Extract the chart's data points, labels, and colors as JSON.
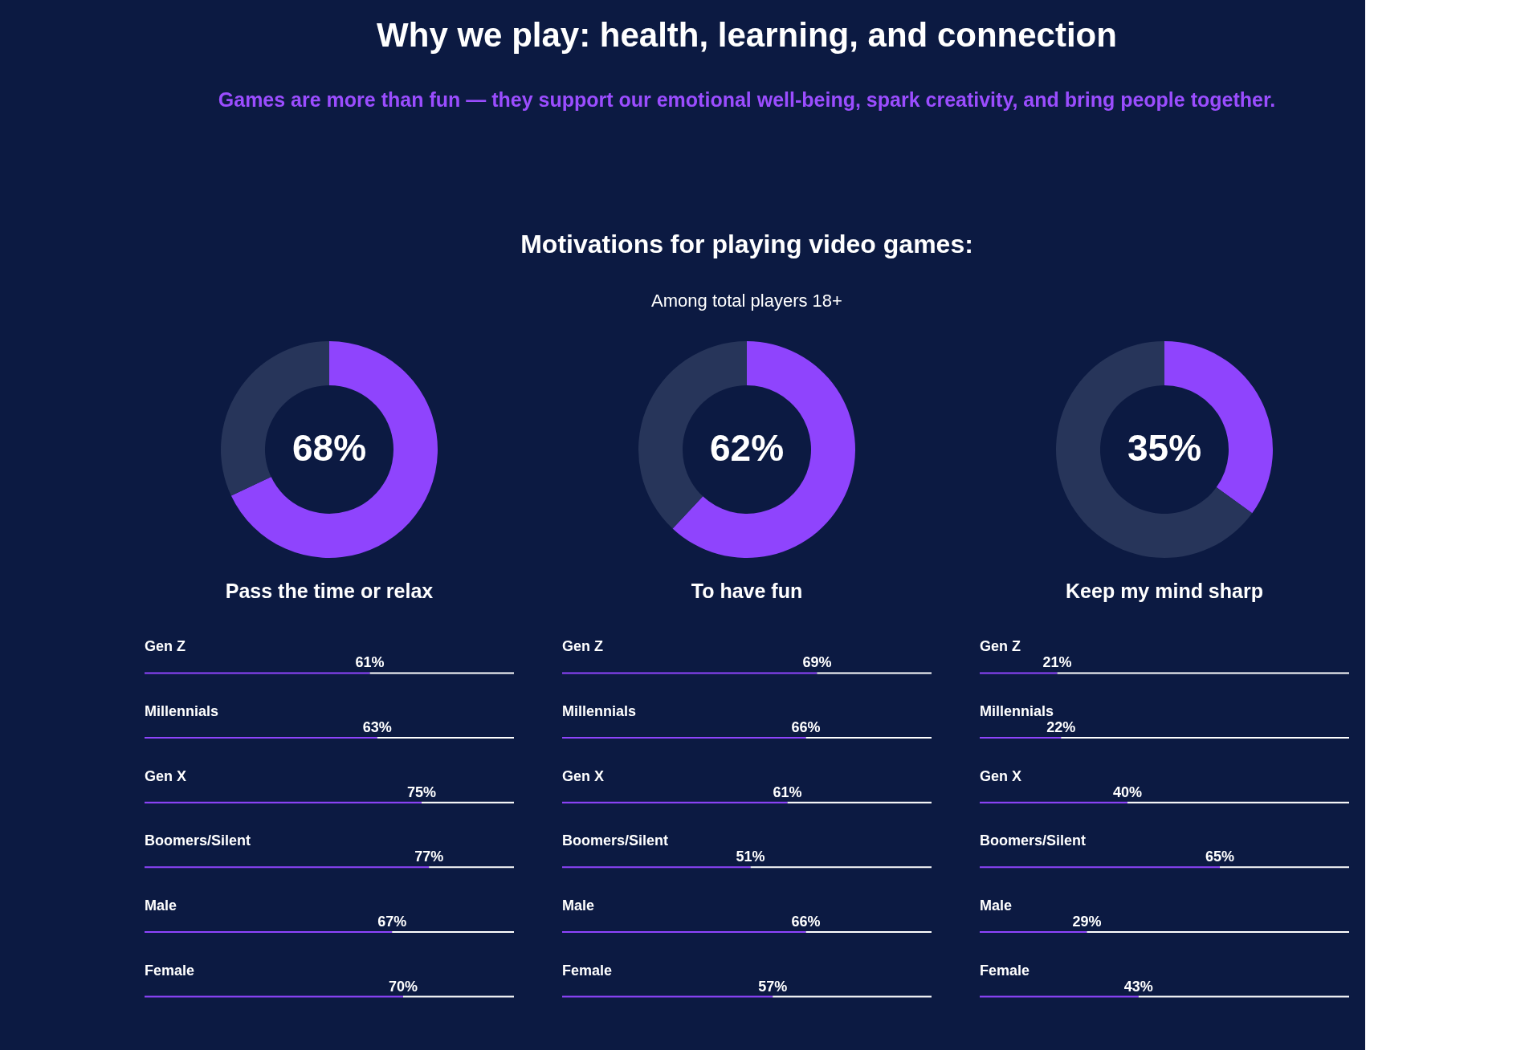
{
  "chart_data": [
    {
      "type": "other",
      "title": "Why we play: health, learning, and connection",
      "subtitle": "Games are more than fun — they support our emotional well-being, spark creativity, and bring people together.",
      "annotations": [
        "Motivations for playing video games:",
        "Among total players 18+"
      ]
    },
    {
      "type": "donut",
      "title": "Pass the time or relax",
      "categories": [
        null,
        null
      ],
      "values": [
        68,
        32
      ],
      "colors": [
        "#8f44fd",
        "#27355a"
      ],
      "value_labels": [
        "68%",
        null
      ]
    },
    {
      "type": "donut",
      "title": "To have fun",
      "categories": [
        null,
        null
      ],
      "values": [
        62,
        38
      ],
      "colors": [
        "#8f44fd",
        "#27355a"
      ],
      "value_labels": [
        "62%",
        null
      ]
    },
    {
      "type": "donut",
      "title": "Keep my mind sharp",
      "categories": [
        null,
        null
      ],
      "values": [
        35,
        65
      ],
      "colors": [
        "#8f44fd",
        "#27355a"
      ],
      "value_labels": [
        "35%",
        null
      ]
    },
    {
      "type": "bar",
      "orientation": "horizontal",
      "stacked": true,
      "tick_labels": false,
      "categories": [
        "Gen Z",
        "Millennials",
        "Gen X",
        "Boomers/Silent",
        "Male",
        "Female"
      ],
      "series": [
        {
          "color": "#8f44fd",
          "values": [
            61,
            63,
            75,
            77,
            67,
            70
          ],
          "value_labels": [
            "61%",
            "63%",
            "75%",
            "77%",
            "67%",
            "70%"
          ]
        },
        {
          "color": "#ffffff",
          "values": [
            39,
            37,
            25,
            23,
            33,
            30
          ]
        }
      ]
    },
    {
      "type": "bar",
      "orientation": "horizontal",
      "stacked": true,
      "tick_labels": false,
      "categories": [
        "Gen Z",
        "Millennials",
        "Gen X",
        "Boomers/Silent",
        "Male",
        "Female"
      ],
      "series": [
        {
          "color": "#8f44fd",
          "values": [
            69,
            66,
            61,
            51,
            66,
            57
          ],
          "value_labels": [
            "69%",
            "66%",
            "61%",
            "51%",
            "66%",
            "57%"
          ]
        },
        {
          "color": "#ffffff",
          "values": [
            31,
            34,
            39,
            49,
            34,
            43
          ]
        }
      ]
    },
    {
      "type": "bar",
      "orientation": "horizontal",
      "stacked": true,
      "tick_labels": false,
      "categories": [
        "Gen Z",
        "Millennials",
        "Gen X",
        "Boomers/Silent",
        "Male",
        "Female"
      ],
      "series": [
        {
          "color": "#8f44fd",
          "values": [
            21,
            22,
            40,
            65,
            29,
            43
          ],
          "value_labels": [
            "21%",
            "22%",
            "40%",
            "65%",
            "29%",
            "43%"
          ]
        },
        {
          "color": "#ffffff",
          "values": [
            79,
            78,
            60,
            35,
            71,
            57
          ]
        }
      ]
    }
  ]
}
